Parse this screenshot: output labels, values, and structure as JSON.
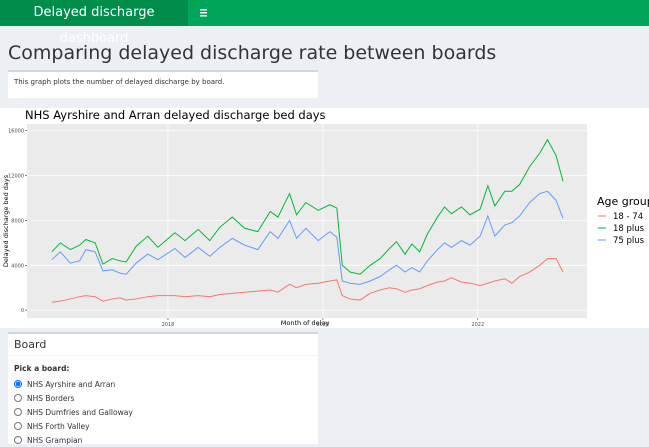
{
  "header": {
    "brand": "Delayed discharge dashboard"
  },
  "page_title": "Comparing delayed discharge rate between boards",
  "description": "This graph plots the number of delayed discharge by board.",
  "chart_data": {
    "type": "line",
    "title": "NHS Ayrshire and Arran delayed discharge bed days",
    "x_label": "Month of delay",
    "y_label": "Delayed discharge bed days",
    "legend_title": "Age group",
    "legend_position": "right",
    "grid": true,
    "x": [
      2016.5,
      2016.61,
      2016.74,
      2016.86,
      2016.94,
      2017.06,
      2017.16,
      2017.28,
      2017.38,
      2017.46,
      2017.59,
      2017.74,
      2017.87,
      2018.09,
      2018.22,
      2018.39,
      2018.54,
      2018.67,
      2018.83,
      2018.99,
      2019.16,
      2019.32,
      2019.42,
      2019.57,
      2019.66,
      2019.78,
      2019.94,
      2020.09,
      2020.18,
      2020.25,
      2020.35,
      2020.48,
      2020.61,
      2020.74,
      2020.86,
      2020.95,
      2021.06,
      2021.15,
      2021.25,
      2021.35,
      2021.48,
      2021.57,
      2021.66,
      2021.79,
      2021.9,
      2022.03,
      2022.13,
      2022.22,
      2022.35,
      2022.44,
      2022.54,
      2022.67,
      2022.8,
      2022.9,
      2023.01,
      2023.1
    ],
    "series": [
      {
        "name": "18 - 74",
        "color": "#F8766D",
        "values": [
          700,
          800,
          1000,
          1200,
          1300,
          1200,
          800,
          1000,
          1100,
          900,
          1000,
          1200,
          1300,
          1300,
          1200,
          1300,
          1200,
          1400,
          1500,
          1600,
          1700,
          1800,
          1600,
          2300,
          2000,
          2300,
          2400,
          2600,
          2700,
          1300,
          1000,
          900,
          1500,
          1800,
          2000,
          1900,
          1600,
          1800,
          1900,
          2200,
          2500,
          2600,
          2900,
          2500,
          2400,
          2200,
          2400,
          2600,
          2800,
          2400,
          3000,
          3400,
          4000,
          4600,
          4600,
          3400
        ]
      },
      {
        "name": "18 plus",
        "color": "#00BA38",
        "values": [
          5200,
          6000,
          5400,
          5800,
          6300,
          6000,
          4100,
          4600,
          4400,
          4300,
          5700,
          6600,
          5600,
          6900,
          6200,
          7200,
          6200,
          7400,
          8300,
          7300,
          7000,
          8800,
          8300,
          10400,
          8500,
          9600,
          8900,
          9400,
          9100,
          4000,
          3400,
          3200,
          4000,
          4600,
          5500,
          6100,
          5000,
          5900,
          5200,
          6800,
          8300,
          9200,
          8600,
          9200,
          8500,
          9000,
          11100,
          9300,
          10600,
          10600,
          11200,
          12800,
          14000,
          15200,
          13800,
          11500
        ]
      },
      {
        "name": "75 plus",
        "color": "#619CFF",
        "values": [
          4500,
          5200,
          4200,
          4400,
          5400,
          5200,
          3500,
          3600,
          3300,
          3200,
          4200,
          5000,
          4500,
          5500,
          4700,
          5600,
          4800,
          5600,
          6400,
          5800,
          5400,
          7000,
          6400,
          8000,
          6400,
          7300,
          6200,
          7000,
          6500,
          2600,
          2400,
          2300,
          2600,
          3000,
          3600,
          4000,
          3400,
          3800,
          3400,
          4400,
          5400,
          6000,
          5600,
          6200,
          5800,
          6600,
          8400,
          6600,
          7600,
          7800,
          8400,
          9600,
          10400,
          10600,
          9800,
          8200
        ]
      }
    ],
    "xlim": [
      2016.18,
      2023.41
    ],
    "xticks": [
      2018,
      2020,
      2022
    ],
    "ylim": [
      -700,
      16600
    ],
    "yticks": [
      0,
      4000,
      8000,
      12000,
      16000
    ]
  },
  "board_box": {
    "title": "Board",
    "label": "Pick a board:",
    "options": [
      "NHS Ayrshire and Arran",
      "NHS Borders",
      "NHS Dumfries and Galloway",
      "NHS Forth Valley",
      "NHS Grampian"
    ],
    "selected": 0
  }
}
